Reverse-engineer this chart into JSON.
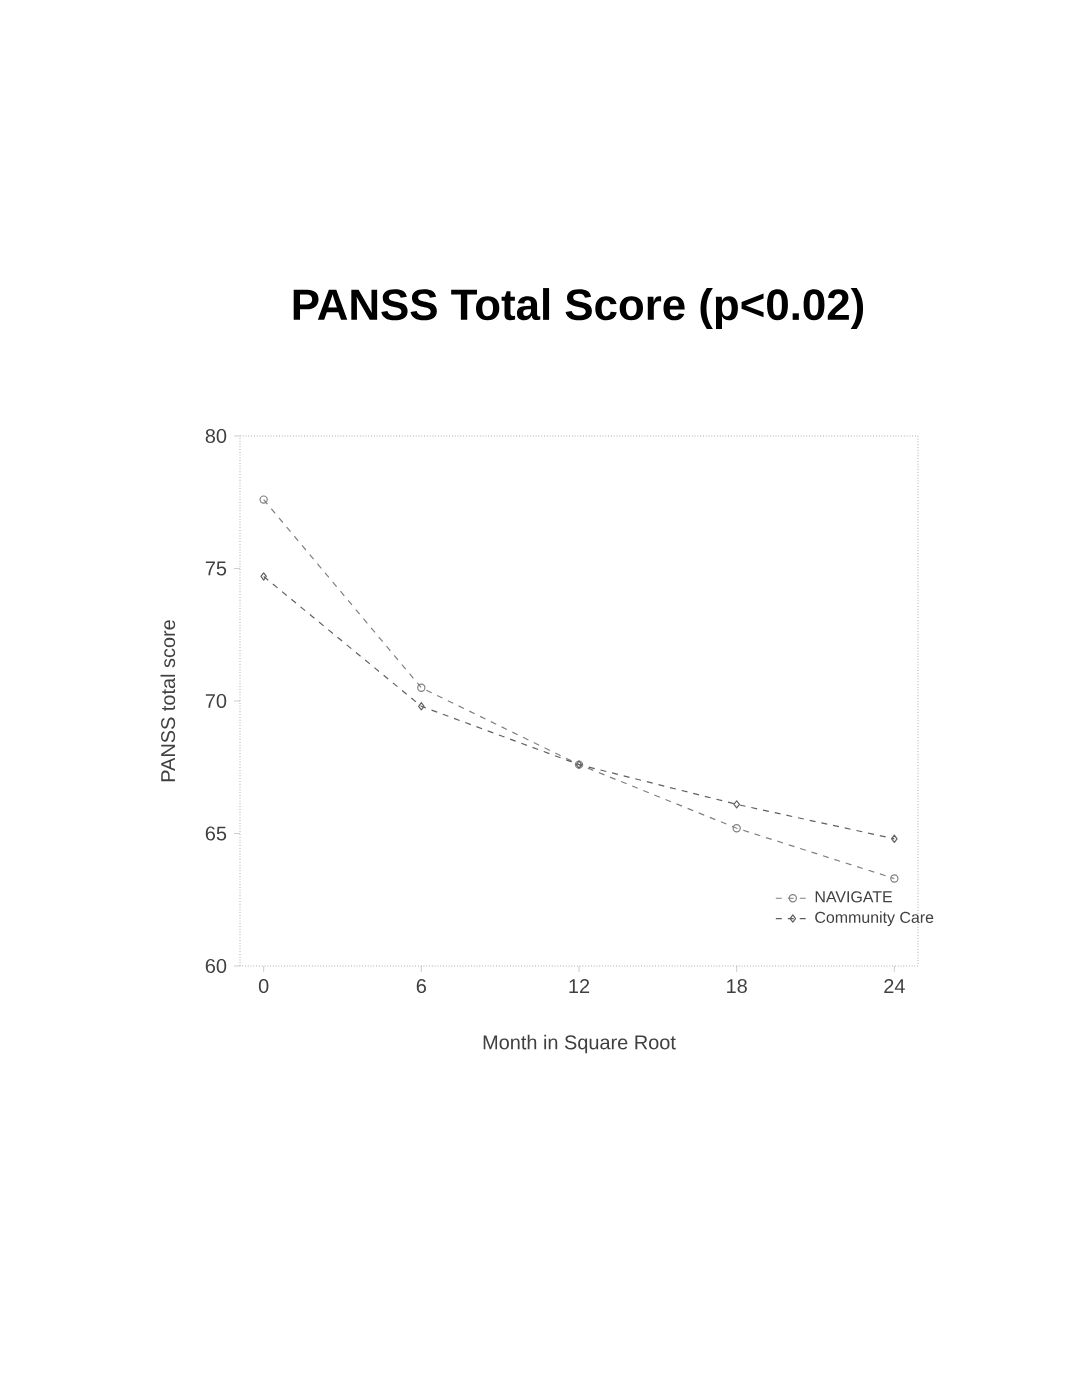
{
  "chart_data": {
    "type": "line",
    "title": "PANSS Total Score (p<0.02)",
    "xlabel": "Month in Square Root",
    "ylabel": "PANSS total score",
    "categories": [
      "0",
      "6",
      "12",
      "18",
      "24"
    ],
    "series": [
      {
        "name": "NAVIGATE",
        "color": "#808080",
        "marker": "circle",
        "values": [
          77.6,
          70.5,
          67.6,
          65.2,
          63.3
        ]
      },
      {
        "name": "Community Care",
        "color": "#606060",
        "marker": "diamond",
        "values": [
          74.7,
          69.8,
          67.6,
          66.1,
          64.8
        ]
      }
    ],
    "ylim": [
      60,
      80
    ],
    "yticks": [
      60,
      65,
      70,
      75,
      80
    ],
    "legend": "bottom right",
    "line_style": "dashed",
    "grid": false
  }
}
